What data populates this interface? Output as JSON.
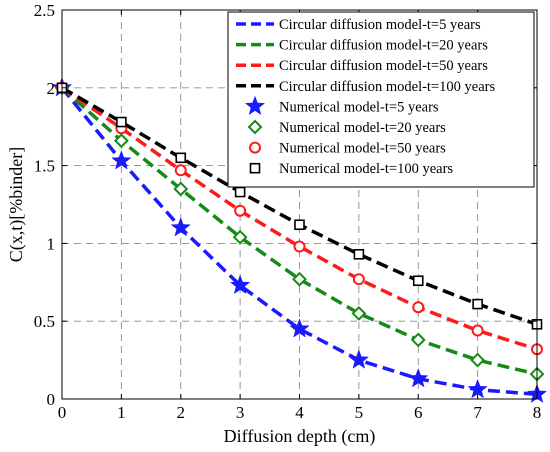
{
  "chart_data": {
    "type": "line",
    "xlabel": "Diffusion depth (cm)",
    "ylabel": "C(x,t)[%binder]",
    "xlim": [
      0,
      8
    ],
    "ylim": [
      0,
      2.5
    ],
    "xticks": [
      "0",
      "1",
      "2",
      "3",
      "4",
      "5",
      "6",
      "7",
      "8"
    ],
    "yticks": [
      "0",
      "0.5",
      "1",
      "1.5",
      "2",
      "2.5"
    ],
    "grid": true,
    "legend_position": "top-right",
    "x": [
      0,
      1,
      2,
      3,
      4,
      5,
      6,
      7,
      8
    ],
    "series": [
      {
        "name": "Circular diffusion model-t=5 years",
        "kind": "line",
        "color": "#1a1aff",
        "values": [
          2.0,
          1.53,
          1.1,
          0.73,
          0.45,
          0.25,
          0.13,
          0.06,
          0.03
        ]
      },
      {
        "name": "Circular diffusion model-t=20 years",
        "kind": "line",
        "color": "#168a16",
        "values": [
          2.0,
          1.66,
          1.35,
          1.04,
          0.77,
          0.55,
          0.38,
          0.25,
          0.16
        ]
      },
      {
        "name": "Circular diffusion model-t=50 years",
        "kind": "line",
        "color": "#ff1a1a",
        "values": [
          2.0,
          1.74,
          1.47,
          1.21,
          0.98,
          0.77,
          0.59,
          0.44,
          0.32
        ]
      },
      {
        "name": "Circular diffusion model-t=100 years",
        "kind": "line",
        "color": "#000000",
        "values": [
          2.0,
          1.78,
          1.55,
          1.33,
          1.12,
          0.93,
          0.76,
          0.61,
          0.48
        ]
      },
      {
        "name": "Numerical model-t=5 years",
        "kind": "marker",
        "marker": "star",
        "color": "#1a1aff",
        "values": [
          2.0,
          1.53,
          1.1,
          0.73,
          0.45,
          0.25,
          0.13,
          0.06,
          0.03
        ]
      },
      {
        "name": "Numerical model-t=20 years",
        "kind": "marker",
        "marker": "diamond",
        "color": "#168a16",
        "values": [
          2.0,
          1.66,
          1.35,
          1.04,
          0.77,
          0.55,
          0.38,
          0.25,
          0.16
        ]
      },
      {
        "name": "Numerical model-t=50 years",
        "kind": "marker",
        "marker": "circle",
        "color": "#ff1a1a",
        "values": [
          2.0,
          1.74,
          1.47,
          1.21,
          0.98,
          0.77,
          0.59,
          0.44,
          0.32
        ]
      },
      {
        "name": "Numerical model-t=100 years",
        "kind": "marker",
        "marker": "square",
        "color": "#000000",
        "values": [
          2.0,
          1.78,
          1.55,
          1.33,
          1.12,
          0.93,
          0.76,
          0.61,
          0.48
        ]
      }
    ]
  }
}
